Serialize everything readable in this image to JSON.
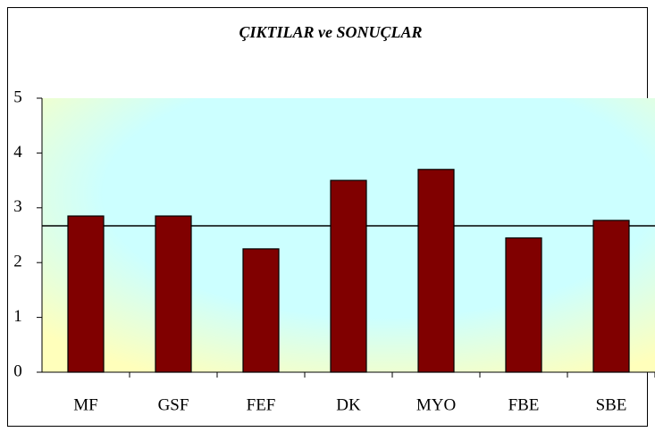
{
  "chart_data": {
    "type": "bar",
    "title": "ÇIKTILAR ve SONUÇLAR",
    "categories": [
      "MF",
      "GSF",
      "FEF",
      "DK",
      "MYO",
      "FBE",
      "SBE"
    ],
    "values": [
      2.85,
      2.85,
      2.25,
      3.5,
      3.7,
      2.45,
      2.77
    ],
    "color": "#800000",
    "reference_line": 2.67,
    "ylim": [
      0,
      5
    ],
    "yticks": [
      0,
      1,
      2,
      3,
      4,
      5
    ],
    "grid": false
  }
}
